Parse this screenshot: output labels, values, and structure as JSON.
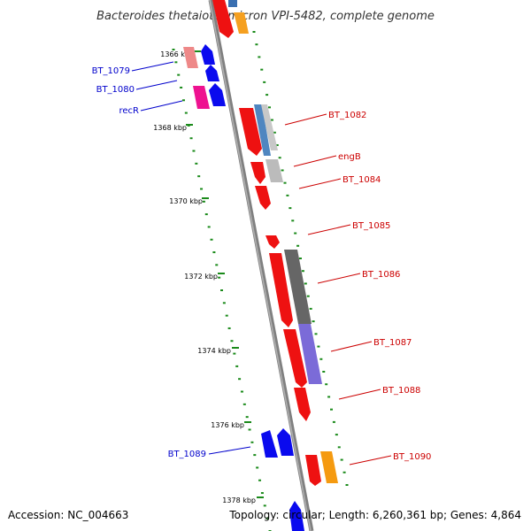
{
  "title": "Bacteroides thetaiotaomicron VPI-5482, complete genome",
  "footer": {
    "accession": "Accession: NC_004663",
    "summary": "Topology: circular; Length: 6,260,361 bp; Genes: 4,864"
  },
  "colors": {
    "forward": "#0000ee",
    "reverse": "#ee0000",
    "backbone": "#808080",
    "ruler": "#1a8a1a",
    "forward_label": "#0000cc",
    "reverse_label": "#cc0000"
  },
  "ruler_labels": [
    "1366 kbp",
    "1368 kbp",
    "1370 kbp",
    "1372 kbp",
    "1374 kbp",
    "1376 kbp",
    "1378 kbp"
  ],
  "genes": [
    {
      "name": "BT_1079",
      "strand": "forward"
    },
    {
      "name": "BT_1080",
      "strand": "forward"
    },
    {
      "name": "recR",
      "strand": "forward"
    },
    {
      "name": "BT_1082",
      "strand": "reverse"
    },
    {
      "name": "engB",
      "strand": "reverse"
    },
    {
      "name": "BT_1084",
      "strand": "reverse"
    },
    {
      "name": "BT_1085",
      "strand": "reverse"
    },
    {
      "name": "BT_1086",
      "strand": "reverse"
    },
    {
      "name": "BT_1087",
      "strand": "reverse"
    },
    {
      "name": "BT_1088",
      "strand": "reverse"
    },
    {
      "name": "BT_1089",
      "strand": "forward"
    },
    {
      "name": "BT_1090",
      "strand": "reverse"
    }
  ]
}
